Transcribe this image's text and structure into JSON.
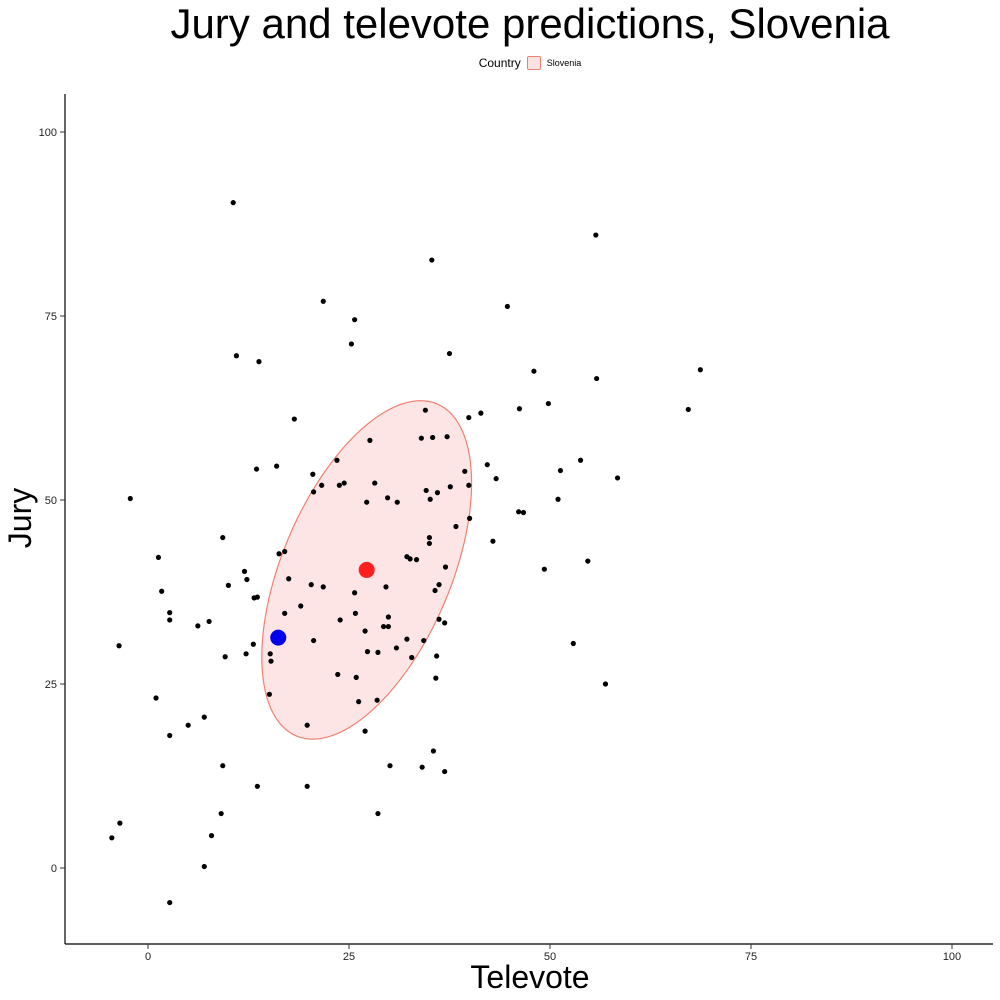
{
  "chart_data": {
    "type": "scatter",
    "title": "Jury and televote predictions, Slovenia",
    "xlabel": "Televote",
    "ylabel": "Jury",
    "xlim": [
      -21,
      210
    ],
    "ylim": [
      -10,
      105
    ],
    "x_ticks": [
      0,
      25,
      50,
      75,
      100
    ],
    "y_ticks": [
      0,
      25,
      50,
      75,
      100
    ],
    "x_tick_labels": [
      "0",
      "25",
      "50",
      "75",
      "100"
    ],
    "y_tick_labels": [
      "0",
      "25",
      "50",
      "75",
      "100"
    ],
    "grid": false,
    "legend": {
      "title": "Country",
      "entries": [
        "Slovenia"
      ],
      "placement": "top"
    },
    "colors": {
      "points": "#000000",
      "mean_point": "#ff1f1f",
      "highlight_point": "#0000ee",
      "ellipse_fill": "#fde2e2",
      "ellipse_stroke": "#f08070"
    },
    "ellipse": {
      "center": [
        27.2,
        40.5
      ],
      "semi_axes": [
        10.5,
        24.5
      ],
      "angle_deg": 23
    },
    "mean_point": [
      27.2,
      40.5
    ],
    "highlight_point": [
      16.2,
      31.3
    ],
    "points": [
      [
        10.6,
        90.4
      ],
      [
        55.7,
        86.0
      ],
      [
        35.3,
        82.6
      ],
      [
        21.8,
        77.0
      ],
      [
        44.7,
        76.3
      ],
      [
        25.7,
        74.5
      ],
      [
        25.3,
        71.2
      ],
      [
        11.0,
        69.6
      ],
      [
        13.8,
        68.8
      ],
      [
        37.5,
        69.9
      ],
      [
        48.0,
        67.5
      ],
      [
        55.8,
        66.5
      ],
      [
        67.2,
        62.3
      ],
      [
        68.7,
        67.7
      ],
      [
        18.2,
        61.0
      ],
      [
        34.5,
        62.2
      ],
      [
        39.9,
        61.2
      ],
      [
        41.4,
        61.8
      ],
      [
        46.2,
        62.4
      ],
      [
        49.8,
        63.1
      ],
      [
        27.6,
        58.1
      ],
      [
        34.0,
        58.4
      ],
      [
        35.4,
        58.5
      ],
      [
        37.2,
        58.6
      ],
      [
        42.2,
        54.8
      ],
      [
        43.3,
        52.9
      ],
      [
        53.8,
        55.4
      ],
      [
        51.3,
        54.0
      ],
      [
        58.4,
        53.0
      ],
      [
        -2.2,
        50.2
      ],
      [
        13.5,
        54.2
      ],
      [
        16.0,
        54.6
      ],
      [
        20.5,
        53.5
      ],
      [
        20.6,
        51.1
      ],
      [
        21.6,
        52.0
      ],
      [
        23.5,
        55.4
      ],
      [
        23.8,
        52.0
      ],
      [
        24.4,
        52.3
      ],
      [
        28.2,
        52.3
      ],
      [
        27.2,
        49.7
      ],
      [
        29.8,
        50.3
      ],
      [
        31.0,
        49.7
      ],
      [
        34.6,
        51.3
      ],
      [
        35.1,
        50.1
      ],
      [
        36.0,
        51.0
      ],
      [
        37.6,
        51.8
      ],
      [
        39.4,
        53.9
      ],
      [
        39.9,
        52.0
      ],
      [
        40.0,
        47.5
      ],
      [
        38.3,
        46.4
      ],
      [
        46.1,
        48.4
      ],
      [
        46.7,
        48.3
      ],
      [
        51.0,
        50.1
      ],
      [
        9.3,
        44.9
      ],
      [
        1.3,
        42.2
      ],
      [
        12.0,
        40.3
      ],
      [
        16.3,
        42.7
      ],
      [
        17.0,
        43.0
      ],
      [
        32.2,
        42.3
      ],
      [
        32.6,
        42.0
      ],
      [
        33.4,
        41.9
      ],
      [
        35.0,
        44.9
      ],
      [
        35.0,
        44.1
      ],
      [
        37.0,
        40.9
      ],
      [
        42.9,
        44.4
      ],
      [
        49.3,
        40.6
      ],
      [
        54.7,
        41.7
      ],
      [
        1.7,
        37.6
      ],
      [
        10.0,
        38.4
      ],
      [
        12.3,
        39.2
      ],
      [
        17.5,
        39.3
      ],
      [
        20.3,
        38.5
      ],
      [
        21.8,
        38.2
      ],
      [
        25.7,
        37.4
      ],
      [
        29.6,
        38.2
      ],
      [
        35.7,
        37.7
      ],
      [
        36.2,
        38.5
      ],
      [
        2.7,
        34.7
      ],
      [
        2.7,
        33.7
      ],
      [
        6.2,
        32.9
      ],
      [
        7.6,
        33.5
      ],
      [
        13.2,
        36.7
      ],
      [
        13.6,
        36.8
      ],
      [
        17.0,
        34.6
      ],
      [
        19.0,
        35.6
      ],
      [
        23.9,
        33.7
      ],
      [
        25.8,
        34.6
      ],
      [
        27.0,
        32.2
      ],
      [
        29.3,
        32.8
      ],
      [
        29.9,
        34.1
      ],
      [
        29.9,
        32.8
      ],
      [
        36.2,
        33.8
      ],
      [
        36.9,
        33.3
      ],
      [
        -3.6,
        30.2
      ],
      [
        9.6,
        28.7
      ],
      [
        12.2,
        29.1
      ],
      [
        13.1,
        30.4
      ],
      [
        15.2,
        29.1
      ],
      [
        15.3,
        28.1
      ],
      [
        20.6,
        30.9
      ],
      [
        27.3,
        29.4
      ],
      [
        28.6,
        29.3
      ],
      [
        30.9,
        29.9
      ],
      [
        32.2,
        31.1
      ],
      [
        32.8,
        28.6
      ],
      [
        34.3,
        30.9
      ],
      [
        35.9,
        28.8
      ],
      [
        52.9,
        30.5
      ],
      [
        56.9,
        25.0
      ],
      [
        15.1,
        23.6
      ],
      [
        23.6,
        26.3
      ],
      [
        25.9,
        25.9
      ],
      [
        26.2,
        22.6
      ],
      [
        28.5,
        22.8
      ],
      [
        35.8,
        25.8
      ],
      [
        1.0,
        23.1
      ],
      [
        5.0,
        19.4
      ],
      [
        7.0,
        20.5
      ],
      [
        19.8,
        19.4
      ],
      [
        27.0,
        18.6
      ],
      [
        2.7,
        18.0
      ],
      [
        9.3,
        13.9
      ],
      [
        13.6,
        11.1
      ],
      [
        19.8,
        11.1
      ],
      [
        30.1,
        13.9
      ],
      [
        34.1,
        13.7
      ],
      [
        35.5,
        15.9
      ],
      [
        36.9,
        13.1
      ],
      [
        -4.5,
        4.1
      ],
      [
        -3.5,
        6.1
      ],
      [
        7.9,
        4.4
      ],
      [
        9.1,
        7.4
      ],
      [
        28.6,
        7.4
      ],
      [
        7.0,
        0.2
      ],
      [
        2.7,
        -4.7
      ]
    ]
  }
}
